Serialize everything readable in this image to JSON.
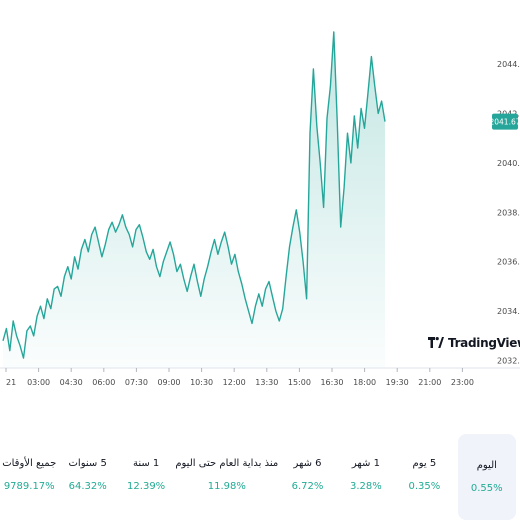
{
  "chart_data": {
    "type": "area",
    "series_color": "#26a69a",
    "price_label": "2041.67",
    "price_label_color": "#26a69a",
    "y_ticks": [
      "2044.00",
      "2042.00",
      "2040.00",
      "2038.00",
      "2036.00",
      "2034.00",
      "2032.00"
    ],
    "y_tick_values": [
      2044,
      2042,
      2040,
      2038,
      2036,
      2034,
      2032
    ],
    "ylim": [
      2031.7,
      2045.7
    ],
    "x_ticks": [
      "21",
      "03:00",
      "04:30",
      "06:00",
      "07:30",
      "09:00",
      "10:30",
      "12:00",
      "13:30",
      "15:00",
      "16:30",
      "18:00",
      "19:30",
      "21:00",
      "23:00"
    ],
    "points": [
      [
        0,
        2032.8
      ],
      [
        1,
        2033.3
      ],
      [
        2,
        2032.4
      ],
      [
        3,
        2033.6
      ],
      [
        4,
        2033.0
      ],
      [
        5,
        2032.6
      ],
      [
        6,
        2032.1
      ],
      [
        7,
        2033.2
      ],
      [
        8,
        2033.4
      ],
      [
        9,
        2033.0
      ],
      [
        10,
        2033.8
      ],
      [
        11,
        2034.2
      ],
      [
        12,
        2033.7
      ],
      [
        13,
        2034.5
      ],
      [
        14,
        2034.1
      ],
      [
        15,
        2034.9
      ],
      [
        16,
        2035.0
      ],
      [
        17,
        2034.6
      ],
      [
        18,
        2035.4
      ],
      [
        19,
        2035.8
      ],
      [
        20,
        2035.3
      ],
      [
        21,
        2036.2
      ],
      [
        22,
        2035.7
      ],
      [
        23,
        2036.5
      ],
      [
        24,
        2036.9
      ],
      [
        25,
        2036.4
      ],
      [
        26,
        2037.1
      ],
      [
        27,
        2037.4
      ],
      [
        28,
        2036.8
      ],
      [
        29,
        2036.2
      ],
      [
        30,
        2036.7
      ],
      [
        31,
        2037.3
      ],
      [
        32,
        2037.6
      ],
      [
        33,
        2037.2
      ],
      [
        34,
        2037.5
      ],
      [
        35,
        2037.9
      ],
      [
        36,
        2037.4
      ],
      [
        37,
        2037.1
      ],
      [
        38,
        2036.6
      ],
      [
        39,
        2037.3
      ],
      [
        40,
        2037.5
      ],
      [
        41,
        2037.0
      ],
      [
        42,
        2036.4
      ],
      [
        43,
        2036.1
      ],
      [
        44,
        2036.5
      ],
      [
        45,
        2035.8
      ],
      [
        46,
        2035.4
      ],
      [
        47,
        2036.0
      ],
      [
        48,
        2036.4
      ],
      [
        49,
        2036.8
      ],
      [
        50,
        2036.3
      ],
      [
        51,
        2035.6
      ],
      [
        52,
        2035.9
      ],
      [
        53,
        2035.3
      ],
      [
        54,
        2034.8
      ],
      [
        55,
        2035.4
      ],
      [
        56,
        2035.9
      ],
      [
        57,
        2035.2
      ],
      [
        58,
        2034.6
      ],
      [
        59,
        2035.3
      ],
      [
        60,
        2035.8
      ],
      [
        61,
        2036.4
      ],
      [
        62,
        2036.9
      ],
      [
        63,
        2036.3
      ],
      [
        64,
        2036.8
      ],
      [
        65,
        2037.2
      ],
      [
        66,
        2036.6
      ],
      [
        67,
        2035.9
      ],
      [
        68,
        2036.3
      ],
      [
        69,
        2035.6
      ],
      [
        70,
        2035.1
      ],
      [
        71,
        2034.5
      ],
      [
        72,
        2034.0
      ],
      [
        73,
        2033.5
      ],
      [
        74,
        2034.2
      ],
      [
        75,
        2034.7
      ],
      [
        76,
        2034.2
      ],
      [
        77,
        2034.9
      ],
      [
        78,
        2035.2
      ],
      [
        79,
        2034.6
      ],
      [
        80,
        2034.0
      ],
      [
        81,
        2033.6
      ],
      [
        82,
        2034.1
      ],
      [
        83,
        2035.4
      ],
      [
        84,
        2036.6
      ],
      [
        85,
        2037.4
      ],
      [
        86,
        2038.1
      ],
      [
        87,
        2037.2
      ],
      [
        88,
        2036.0
      ],
      [
        89,
        2034.5
      ],
      [
        90,
        2041.2
      ],
      [
        91,
        2043.8
      ],
      [
        92,
        2041.5
      ],
      [
        93,
        2040.0
      ],
      [
        94,
        2038.2
      ],
      [
        95,
        2041.8
      ],
      [
        96,
        2043.1
      ],
      [
        97,
        2045.3
      ],
      [
        98,
        2041.6
      ],
      [
        99,
        2037.4
      ],
      [
        100,
        2039.0
      ],
      [
        101,
        2041.2
      ],
      [
        102,
        2040.0
      ],
      [
        103,
        2041.9
      ],
      [
        104,
        2040.6
      ],
      [
        105,
        2042.2
      ],
      [
        106,
        2041.4
      ],
      [
        107,
        2042.8
      ],
      [
        108,
        2044.3
      ],
      [
        109,
        2043.1
      ],
      [
        110,
        2042.0
      ],
      [
        111,
        2042.5
      ],
      [
        112,
        2041.67
      ]
    ]
  },
  "logo": {
    "text": "TradingView"
  },
  "periods": [
    {
      "label": "اليوم",
      "change": "0.55%",
      "active": true
    },
    {
      "label": "5 يوم",
      "change": "0.35%"
    },
    {
      "label": "1 شهر",
      "change": "3.28%"
    },
    {
      "label": "6 شهر",
      "change": "6.72%"
    },
    {
      "label": "منذ بداية العام حتى اليوم",
      "change": "11.98%"
    },
    {
      "label": "1 سنة",
      "change": "12.39%"
    },
    {
      "label": "5 سنوات",
      "change": "64.32%"
    },
    {
      "label": "جميع الأوقات",
      "change": "9789.17%"
    }
  ]
}
